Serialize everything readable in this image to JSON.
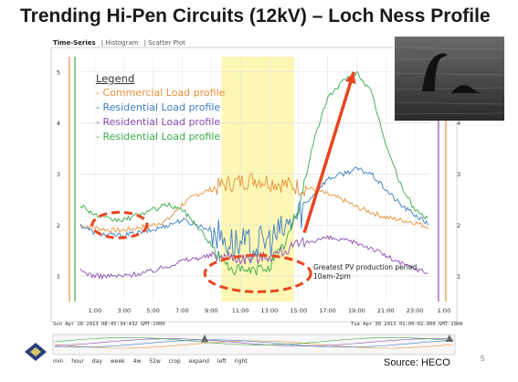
{
  "slide": {
    "title": "Trending Hi-Pen Circuits (12kV) – Loch Ness Profile",
    "page_number": "5",
    "source": "Source: HECO"
  },
  "tabs": [
    "Time-Series",
    "Histogram",
    "Scatter Plot"
  ],
  "annotation": {
    "line1": "Greatest PV production period",
    "line2": "10am-2pm"
  },
  "timestamps": {
    "left": "Sun Apr 28 2013 08:45:34:432 GMT-1000",
    "right": "Tue Apr 30 2013 01:00:02.000 GMT-1000"
  },
  "zoom_controls": [
    "min",
    "hour",
    "day",
    "week",
    "4w",
    "52w",
    "crop",
    "expand",
    "left",
    "right"
  ],
  "colors": {
    "commercial": "#e8913a",
    "residential_blue": "#3d7fc1",
    "residential_purple": "#8a4fb0",
    "residential_green": "#3aab4a",
    "highlight": "#fbf6a8",
    "arrow": "#e8451e",
    "ellipse": "#e8451e"
  },
  "chart_data": {
    "type": "line",
    "legend_title": "Legend",
    "x_ticks": [
      "1:00",
      "3:00",
      "5:00",
      "7:00",
      "9:00",
      "11:00",
      "13:00",
      "15:00",
      "17:00",
      "19:00",
      "21:00",
      "23:00",
      "1:00"
    ],
    "y_ticks": [
      "1",
      "2",
      "3",
      "4",
      "5"
    ],
    "ylim": [
      0.5,
      5.3
    ],
    "highlight_range": [
      9.7,
      14.7
    ],
    "grid": true,
    "series": [
      {
        "name": "Commercial Load profile",
        "color": "#e8913a",
        "x": [
          0,
          1,
          2,
          3,
          4,
          5,
          6,
          7,
          8,
          9,
          10,
          11,
          12,
          13,
          14,
          15,
          16,
          17,
          18,
          19,
          20,
          21,
          22,
          23,
          24
        ],
        "y": [
          2.0,
          1.95,
          1.9,
          1.9,
          1.95,
          2.0,
          2.1,
          2.4,
          2.6,
          2.7,
          2.8,
          2.85,
          2.9,
          2.85,
          2.8,
          2.75,
          2.7,
          2.6,
          2.5,
          2.35,
          2.25,
          2.15,
          2.1,
          2.05,
          1.95
        ]
      },
      {
        "name": "Residential Load profile",
        "color": "#3d7fc1",
        "x": [
          0,
          1,
          2,
          3,
          4,
          5,
          6,
          7,
          8,
          9,
          10,
          11,
          12,
          13,
          14,
          15,
          16,
          17,
          18,
          19,
          20,
          21,
          22,
          23,
          24
        ],
        "y": [
          2.0,
          1.85,
          1.8,
          1.8,
          1.85,
          1.9,
          2.0,
          2.1,
          2.0,
          1.9,
          1.7,
          1.6,
          1.6,
          1.7,
          1.9,
          2.2,
          2.6,
          2.9,
          3.0,
          3.1,
          3.0,
          2.7,
          2.4,
          2.2,
          2.0
        ]
      },
      {
        "name": "Residential Load profile",
        "color": "#8a4fb0",
        "x": [
          0,
          1,
          2,
          3,
          4,
          5,
          6,
          7,
          8,
          9,
          10,
          11,
          12,
          13,
          14,
          15,
          16,
          17,
          18,
          19,
          20,
          21,
          22,
          23,
          24
        ],
        "y": [
          1.1,
          1.0,
          1.0,
          1.0,
          1.05,
          1.1,
          1.2,
          1.3,
          1.35,
          1.4,
          1.4,
          1.35,
          1.35,
          1.4,
          1.5,
          1.6,
          1.7,
          1.75,
          1.7,
          1.65,
          1.55,
          1.4,
          1.25,
          1.15,
          1.05
        ]
      },
      {
        "name": "Residential Load profile",
        "color": "#3aab4a",
        "x": [
          0,
          1,
          2,
          3,
          4,
          5,
          6,
          7,
          8,
          9,
          10,
          11,
          12,
          13,
          14,
          15,
          16,
          17,
          18,
          19,
          20,
          21,
          22,
          23,
          24
        ],
        "y": [
          2.4,
          2.2,
          2.1,
          2.1,
          2.2,
          2.3,
          2.4,
          2.3,
          2.0,
          1.6,
          1.2,
          1.1,
          1.1,
          1.2,
          1.6,
          2.3,
          3.6,
          4.5,
          4.8,
          5.0,
          4.6,
          3.6,
          2.8,
          2.3,
          2.1
        ]
      }
    ]
  }
}
